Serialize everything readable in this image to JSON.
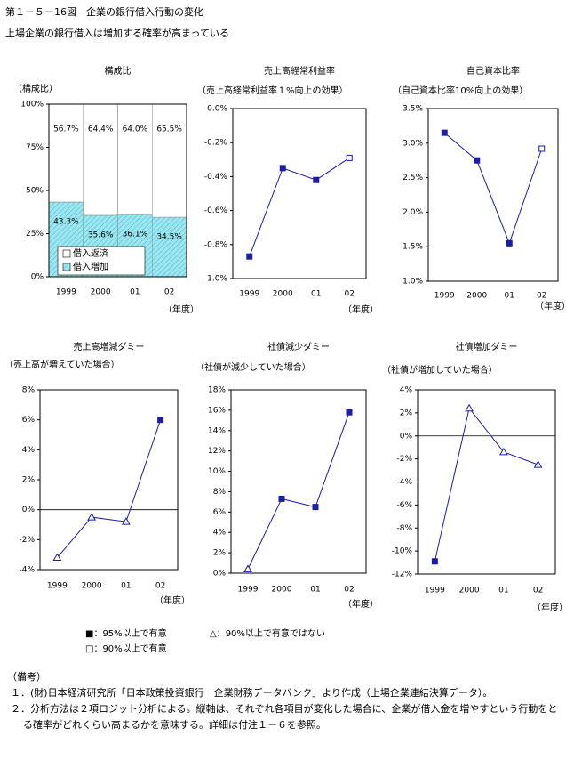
{
  "header": {
    "title": "第１－５－16図　企業の銀行借入行動の変化",
    "subtitle": "上場企業の銀行借入は増加する確率が高まっている"
  },
  "chart_data": [
    {
      "type": "bar",
      "stacked": true,
      "title": "構成比",
      "ylabel": "（構成比）",
      "xlabel": "（年度）",
      "categories": [
        "1999",
        "2000",
        "01",
        "02"
      ],
      "ylim": [
        0,
        100
      ],
      "yticks": [
        {
          "value": 0,
          "label": "0%"
        },
        {
          "value": 25,
          "label": "25%"
        },
        {
          "value": 50,
          "label": "50%"
        },
        {
          "value": 75,
          "label": "75%"
        },
        {
          "value": 100,
          "label": "100%"
        }
      ],
      "series": [
        {
          "name": "借入増加",
          "color": "#9ee6f0",
          "values": [
            43.3,
            35.6,
            36.1,
            34.5
          ],
          "value_labels": [
            "43.3%",
            "35.6%",
            "36.1%",
            "34.5%"
          ]
        },
        {
          "name": "借入返済",
          "color": "#ffffff",
          "values": [
            56.7,
            64.4,
            64.0,
            65.5
          ],
          "value_labels": [
            "56.7%",
            "64.4%",
            "64.0%",
            "65.5%"
          ]
        }
      ]
    },
    {
      "type": "line",
      "title": "売上高経常利益率",
      "ylabel": "（売上高経常利益率１%向上の効果）",
      "xlabel": "（年度）",
      "categories": [
        "1999",
        "2000",
        "01",
        "02"
      ],
      "color": "#1c1ca8",
      "values": [
        -0.87,
        -0.35,
        -0.42,
        -0.29
      ],
      "markers": [
        "filled",
        "filled",
        "filled",
        "open"
      ],
      "ylim": [
        -1.0,
        0.0
      ],
      "yticks": [
        {
          "value": -1.0,
          "label": "-1.0%"
        },
        {
          "value": -0.8,
          "label": "-0.8%"
        },
        {
          "value": -0.6,
          "label": "-0.6%"
        },
        {
          "value": -0.4,
          "label": "-0.4%"
        },
        {
          "value": -0.2,
          "label": "-0.2%"
        },
        {
          "value": 0.0,
          "label": "0.0%"
        }
      ]
    },
    {
      "type": "line",
      "title": "自己資本比率",
      "ylabel": "（自己資本比率10%向上の効果）",
      "xlabel": "（年度）",
      "categories": [
        "1999",
        "2000",
        "01",
        "02"
      ],
      "color": "#1c1ca8",
      "values": [
        3.15,
        2.75,
        1.55,
        2.92
      ],
      "markers": [
        "filled",
        "filled",
        "filled",
        "open"
      ],
      "ylim": [
        1.0,
        3.5
      ],
      "yticks": [
        {
          "value": 1.0,
          "label": "1.0%"
        },
        {
          "value": 1.5,
          "label": "1.5%"
        },
        {
          "value": 2.0,
          "label": "2.0%"
        },
        {
          "value": 2.5,
          "label": "2.5%"
        },
        {
          "value": 3.0,
          "label": "3.0%"
        },
        {
          "value": 3.5,
          "label": "3.5%"
        }
      ]
    },
    {
      "type": "line",
      "title": "売上高増減ダミー",
      "ylabel": "（売上高が増えていた場合）",
      "xlabel": "（年度）",
      "categories": [
        "1999",
        "2000",
        "01",
        "02"
      ],
      "color": "#1c1ca8",
      "values": [
        -3.2,
        -0.5,
        -0.8,
        6.0
      ],
      "markers": [
        "triangle",
        "triangle",
        "triangle",
        "filled"
      ],
      "ylim": [
        -4,
        8
      ],
      "yticks": [
        {
          "value": -4,
          "label": "-4%"
        },
        {
          "value": -2,
          "label": "-2%"
        },
        {
          "value": 0,
          "label": "0%"
        },
        {
          "value": 2,
          "label": "2%"
        },
        {
          "value": 4,
          "label": "4%"
        },
        {
          "value": 6,
          "label": "6%"
        },
        {
          "value": 8,
          "label": "8%"
        }
      ]
    },
    {
      "type": "line",
      "title": "社債減少ダミー",
      "ylabel": "（社債が減少していた場合）",
      "xlabel": "（年度）",
      "categories": [
        "1999",
        "2000",
        "01",
        "02"
      ],
      "color": "#1c1ca8",
      "values": [
        0.4,
        7.3,
        6.5,
        15.8
      ],
      "markers": [
        "triangle",
        "filled",
        "filled",
        "filled"
      ],
      "ylim": [
        0,
        18
      ],
      "yticks": [
        {
          "value": 0,
          "label": "0%"
        },
        {
          "value": 2,
          "label": "2%"
        },
        {
          "value": 4,
          "label": "4%"
        },
        {
          "value": 6,
          "label": "6%"
        },
        {
          "value": 8,
          "label": "8%"
        },
        {
          "value": 10,
          "label": "10%"
        },
        {
          "value": 12,
          "label": "12%"
        },
        {
          "value": 14,
          "label": "14%"
        },
        {
          "value": 16,
          "label": "16%"
        },
        {
          "value": 18,
          "label": "18%"
        }
      ]
    },
    {
      "type": "line",
      "title": "社債増加ダミー",
      "ylabel": "（社債が増加していた場合）",
      "xlabel": "（年度）",
      "categories": [
        "1999",
        "2000",
        "01",
        "02"
      ],
      "color": "#1c1ca8",
      "values": [
        -10.9,
        2.4,
        -1.4,
        -2.5
      ],
      "markers": [
        "filled",
        "triangle",
        "triangle",
        "triangle"
      ],
      "ylim": [
        -12,
        4
      ],
      "yticks": [
        {
          "value": -12,
          "label": "-12%"
        },
        {
          "value": -10,
          "label": "-10%"
        },
        {
          "value": -8,
          "label": "-8%"
        },
        {
          "value": -6,
          "label": "-6%"
        },
        {
          "value": -4,
          "label": "-4%"
        },
        {
          "value": -2,
          "label": "-2%"
        },
        {
          "value": 0,
          "label": "0%"
        },
        {
          "value": 2,
          "label": "2%"
        },
        {
          "value": 4,
          "label": "4%"
        }
      ]
    }
  ],
  "legend_notes": [
    "■：95%以上で有意",
    "△：90%以上で有意ではない",
    "□：90%以上で有意"
  ],
  "notes": {
    "heading": "（備考）",
    "items": [
      "１．(財)日本経済研究所「日本政策投資銀行　企業財務データバンク」より作成（上場企業連結決算データ）。",
      "２．分析方法は２項ロジット分析による。縦軸は、それぞれ各項目が変化した場合に、企業が借入金を増やすという行動をとる確率がどれくらい高まるかを意味する。詳細は付注１－６を参照。"
    ]
  }
}
